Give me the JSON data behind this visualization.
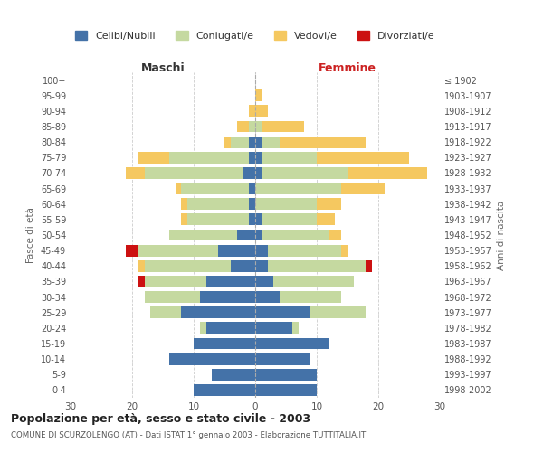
{
  "age_groups": [
    "0-4",
    "5-9",
    "10-14",
    "15-19",
    "20-24",
    "25-29",
    "30-34",
    "35-39",
    "40-44",
    "45-49",
    "50-54",
    "55-59",
    "60-64",
    "65-69",
    "70-74",
    "75-79",
    "80-84",
    "85-89",
    "90-94",
    "95-99",
    "100+"
  ],
  "birth_years": [
    "1998-2002",
    "1993-1997",
    "1988-1992",
    "1983-1987",
    "1978-1982",
    "1973-1977",
    "1968-1972",
    "1963-1967",
    "1958-1962",
    "1953-1957",
    "1948-1952",
    "1943-1947",
    "1938-1942",
    "1933-1937",
    "1928-1932",
    "1923-1927",
    "1918-1922",
    "1913-1917",
    "1908-1912",
    "1903-1907",
    "≤ 1902"
  ],
  "maschi": {
    "celibe": [
      10,
      7,
      14,
      10,
      8,
      12,
      9,
      8,
      4,
      6,
      3,
      1,
      1,
      1,
      2,
      1,
      1,
      0,
      0,
      0,
      0
    ],
    "coniugato": [
      0,
      0,
      0,
      0,
      1,
      5,
      9,
      10,
      14,
      13,
      11,
      10,
      10,
      11,
      16,
      13,
      3,
      1,
      0,
      0,
      0
    ],
    "vedovo": [
      0,
      0,
      0,
      0,
      0,
      0,
      0,
      0,
      1,
      0,
      0,
      1,
      1,
      1,
      3,
      5,
      1,
      2,
      1,
      0,
      0
    ],
    "divorziato": [
      0,
      0,
      0,
      0,
      0,
      0,
      0,
      1,
      0,
      2,
      0,
      0,
      0,
      0,
      0,
      0,
      0,
      0,
      0,
      0,
      0
    ]
  },
  "femmine": {
    "nubile": [
      10,
      10,
      9,
      12,
      6,
      9,
      4,
      3,
      2,
      2,
      1,
      1,
      0,
      0,
      1,
      1,
      1,
      0,
      0,
      0,
      0
    ],
    "coniugata": [
      0,
      0,
      0,
      0,
      1,
      9,
      10,
      13,
      16,
      12,
      11,
      9,
      10,
      14,
      14,
      9,
      3,
      1,
      0,
      0,
      0
    ],
    "vedova": [
      0,
      0,
      0,
      0,
      0,
      0,
      0,
      0,
      0,
      1,
      2,
      3,
      4,
      7,
      13,
      15,
      14,
      7,
      2,
      1,
      0
    ],
    "divorziata": [
      0,
      0,
      0,
      0,
      0,
      0,
      0,
      0,
      1,
      0,
      0,
      0,
      0,
      0,
      0,
      0,
      0,
      0,
      0,
      0,
      0
    ]
  },
  "colors": {
    "celibe": "#4472a8",
    "coniugato": "#c5d9a0",
    "vedovo": "#f5c860",
    "divorziato": "#cc1111"
  },
  "title": "Popolazione per età, sesso e stato civile - 2003",
  "subtitle": "COMUNE DI SCURZOLENGO (AT) - Dati ISTAT 1° gennaio 2003 - Elaborazione TUTTITALIA.IT",
  "ylabel_left": "Fasce di età",
  "ylabel_right": "Anni di nascita",
  "xlim": 30,
  "legend_labels": [
    "Celibi/Nubili",
    "Coniugati/e",
    "Vedovi/e",
    "Divorziati/e"
  ],
  "maschi_label": "Maschi",
  "femmine_label": "Femmine",
  "background_color": "#ffffff",
  "grid_color": "#cccccc"
}
